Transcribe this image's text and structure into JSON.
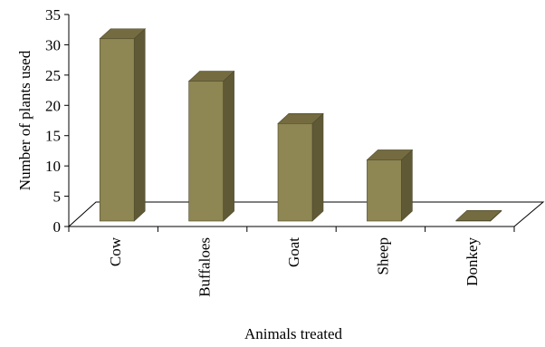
{
  "chart_data": {
    "type": "bar",
    "title": "",
    "xlabel": "Animals treated",
    "ylabel": "Number of plants used",
    "categories": [
      "Cow",
      "Buffaloes",
      "Goat",
      "Sheep",
      "Donkey"
    ],
    "values": [
      31,
      24,
      17,
      11,
      1
    ],
    "ylim": [
      0,
      35
    ],
    "yticks": [
      0,
      5,
      10,
      15,
      20,
      25,
      30,
      35
    ],
    "style": "3d-column",
    "grid": false,
    "legend": "none",
    "colors": {
      "bar_front": "#8e8653",
      "bar_side": "#5f5935",
      "bar_top": "#746c40",
      "bar_outline": "#4e4a2c"
    }
  }
}
